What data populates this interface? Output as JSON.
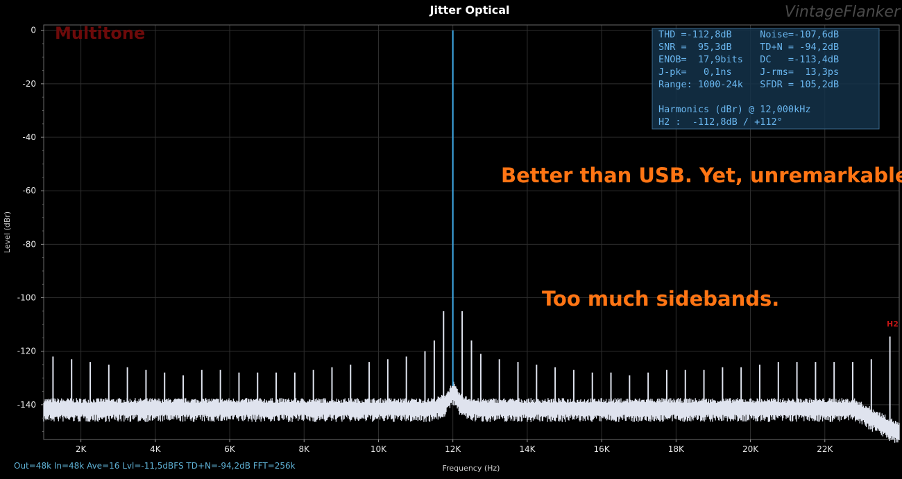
{
  "chart_data": {
    "type": "line",
    "title": "Jitter Optical",
    "xlabel": "Frequency (Hz)",
    "ylabel": "Level (dBr)",
    "xlim": [
      1000,
      24000
    ],
    "ylim": [
      -153,
      2
    ],
    "x_ticks": [
      2000,
      4000,
      6000,
      8000,
      10000,
      12000,
      14000,
      16000,
      18000,
      20000,
      22000
    ],
    "x_tick_labels": [
      "2K",
      "4K",
      "6K",
      "8K",
      "10K",
      "12K",
      "14K",
      "16K",
      "18K",
      "20K",
      "22K"
    ],
    "y_ticks": [
      0,
      -20,
      -40,
      -60,
      -80,
      -100,
      -120,
      -140
    ],
    "y_tick_labels": [
      "0",
      "-20",
      "-40",
      "-60",
      "-80",
      "-100",
      "-120",
      "-140"
    ],
    "grid": true,
    "fundamental": {
      "x": 12000,
      "y": 0
    },
    "noise_floor": -141.5,
    "tones": [
      [
        1250,
        -122
      ],
      [
        1750,
        -123
      ],
      [
        2250,
        -124
      ],
      [
        2750,
        -125
      ],
      [
        3250,
        -126
      ],
      [
        3750,
        -127
      ],
      [
        4250,
        -128
      ],
      [
        4750,
        -129
      ],
      [
        5250,
        -127
      ],
      [
        5750,
        -127
      ],
      [
        6250,
        -128
      ],
      [
        6750,
        -128
      ],
      [
        7250,
        -128
      ],
      [
        7750,
        -128
      ],
      [
        8250,
        -127
      ],
      [
        8750,
        -126
      ],
      [
        9250,
        -125
      ],
      [
        9750,
        -124
      ],
      [
        10250,
        -123
      ],
      [
        10750,
        -122
      ],
      [
        11250,
        -120
      ],
      [
        11500,
        -116
      ],
      [
        11750,
        -105
      ],
      [
        12250,
        -105
      ],
      [
        12500,
        -116
      ],
      [
        12750,
        -121
      ],
      [
        13250,
        -123
      ],
      [
        13750,
        -124
      ],
      [
        14250,
        -125
      ],
      [
        14750,
        -126
      ],
      [
        15250,
        -127
      ],
      [
        15750,
        -128
      ],
      [
        16250,
        -128
      ],
      [
        16750,
        -129
      ],
      [
        17250,
        -128
      ],
      [
        17750,
        -127
      ],
      [
        18250,
        -127
      ],
      [
        18750,
        -127
      ],
      [
        19250,
        -126
      ],
      [
        19750,
        -126
      ],
      [
        20250,
        -125
      ],
      [
        20750,
        -124
      ],
      [
        21250,
        -124
      ],
      [
        21750,
        -124
      ],
      [
        22250,
        -124
      ],
      [
        22750,
        -124
      ],
      [
        23250,
        -123
      ],
      [
        23750,
        -114.5
      ]
    ]
  },
  "title": "Jitter Optical",
  "watermark": "VintageFlanker",
  "overlay_label": "Multitone",
  "stats": [
    "THD =-112,8dB     Noise=-107,6dB",
    "SNR =  95,3dB     TD+N = -94,2dB",
    "ENOB=  17,9bits   DC   =-113,4dB",
    "J-pk=   0,1ns     J-rms=  13,3ps",
    "Range: 1000-24k   SFDR = 105,2dB",
    "",
    "Harmonics (dBr) @ 12,000kHz",
    "H2 :  -112,8dB / +112°"
  ],
  "annotations": {
    "comment_1": "Better than USB. Yet, unremarkable.",
    "comment_2": "Too much sidebands.",
    "harmonic_marker": "H2"
  },
  "footer": "Out=48k In=48k Ave=16 Lvl=-11,5dBFS TD+N=-94,2dB FFT=256k",
  "colors": {
    "background": "#000000",
    "grid": "#2f2f2f",
    "spectrum": "#dfe3ee",
    "fundamental": "#3fa9e6",
    "stats_text": "#6ab7f0",
    "stats_bg": "#14324a",
    "annotation": "#ff7514",
    "overlay_label": "#6d0a0a",
    "harmonic_marker": "#c01515",
    "footer": "#5fb2d6"
  }
}
